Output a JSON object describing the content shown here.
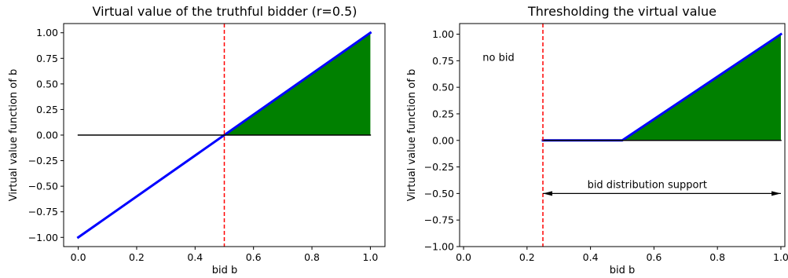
{
  "chart_data": [
    {
      "type": "line",
      "title": "Virtual value of the truthful bidder (r=0.5)",
      "xlabel": "bid b",
      "ylabel": "Virtual value function of b",
      "xlim": [
        -0.05,
        1.05
      ],
      "ylim": [
        -1.09,
        1.09
      ],
      "xticks": [
        "0.0",
        "0.2",
        "0.4",
        "0.6",
        "0.8",
        "1.0"
      ],
      "yticks": [
        "−1.00",
        "−0.75",
        "−0.50",
        "−0.25",
        "0.00",
        "0.25",
        "0.50",
        "0.75",
        "1.00"
      ],
      "series": [
        {
          "role": "virtual-value",
          "color": "#0000ff",
          "x": [
            0,
            1
          ],
          "y": [
            -1,
            1
          ]
        },
        {
          "role": "zero-line",
          "color": "#000000",
          "x": [
            0,
            1
          ],
          "y": [
            0,
            0
          ]
        }
      ],
      "vline": {
        "x": 0.5,
        "color": "#ff0000",
        "style": "dashed"
      },
      "fill": {
        "x": [
          0.5,
          1
        ],
        "y_top": [
          0,
          1
        ],
        "y_bottom": [
          0,
          0
        ],
        "color": "#008000"
      }
    },
    {
      "type": "line",
      "title": "Thresholding the virtual value",
      "xlabel": "bid b",
      "ylabel": "Virtual value function of b",
      "xlim": [
        -0.0125,
        1.0125
      ],
      "ylim": [
        -1.0,
        1.1
      ],
      "xticks": [
        "0.0",
        "0.2",
        "0.4",
        "0.6",
        "0.8",
        "1.0"
      ],
      "yticks": [
        "−1.00",
        "−0.75",
        "−0.50",
        "−0.25",
        "0.00",
        "0.25",
        "0.50",
        "0.75",
        "1.00"
      ],
      "series": [
        {
          "role": "thresholded-virtual-value",
          "color": "#0000ff",
          "x": [
            0.25,
            0.5,
            1
          ],
          "y": [
            0,
            0,
            1
          ]
        },
        {
          "role": "zero-line",
          "color": "#000000",
          "x": [
            0.25,
            1
          ],
          "y": [
            0,
            0
          ]
        }
      ],
      "vline": {
        "x": 0.25,
        "color": "#ff0000",
        "style": "dashed"
      },
      "fill": {
        "x": [
          0.5,
          1
        ],
        "y_top": [
          0,
          1
        ],
        "y_bottom": [
          0,
          0
        ],
        "color": "#008000"
      },
      "annotations": [
        {
          "text": "no bid",
          "x": 0.06,
          "y": 0.75
        },
        {
          "text": "bid distribution support",
          "x": 0.39,
          "y": -0.45
        }
      ],
      "arrow": {
        "x_from": 0.25,
        "x_to": 1.0,
        "y": -0.5,
        "style": "double-headed"
      }
    }
  ]
}
